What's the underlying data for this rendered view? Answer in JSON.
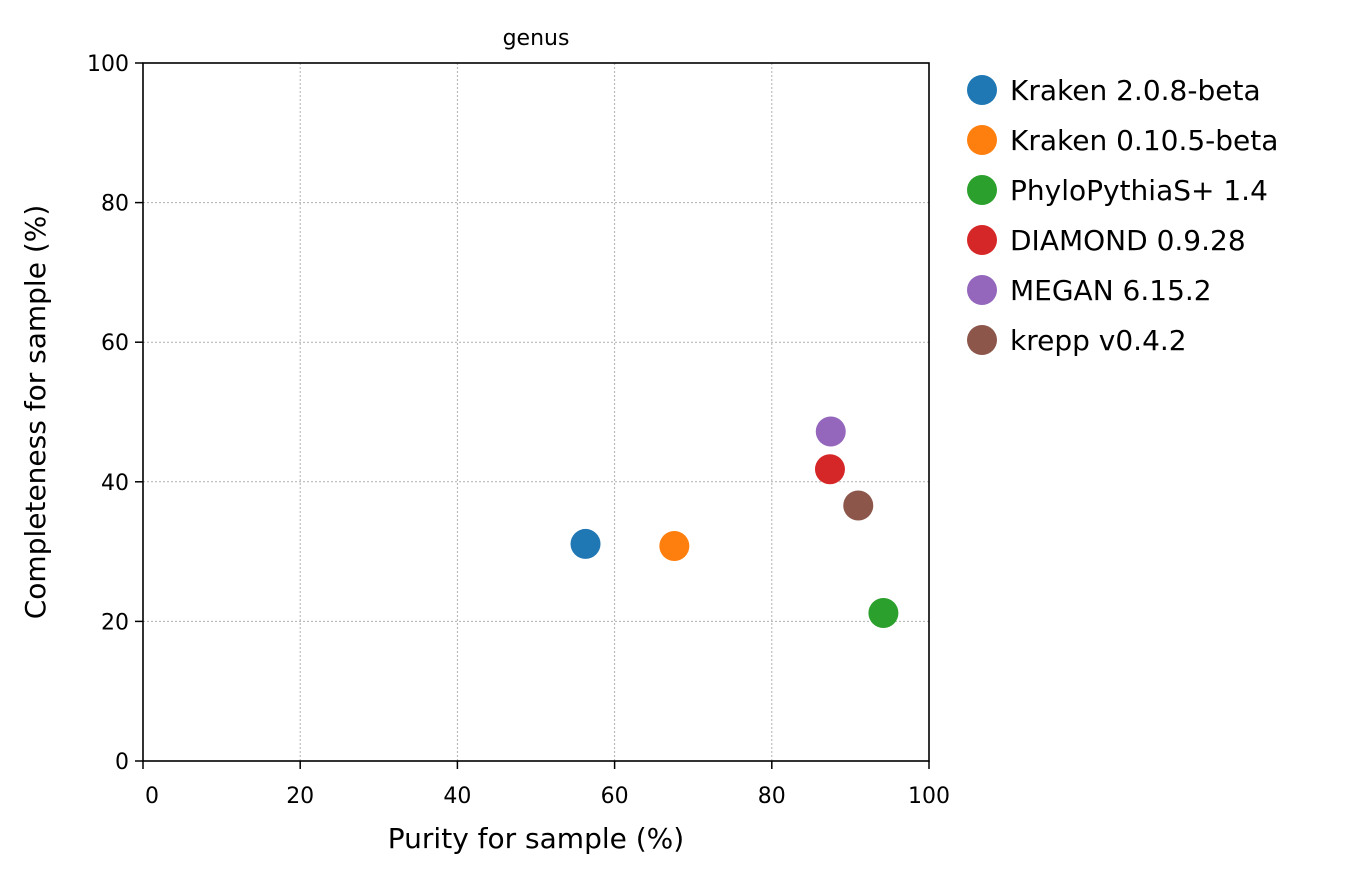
{
  "chart_data": {
    "type": "scatter",
    "title": "genus",
    "xlabel": "Purity for sample (%)",
    "ylabel": "Completeness for sample (%)",
    "xlim": [
      0,
      100
    ],
    "ylim": [
      0,
      100
    ],
    "xticks": [
      0,
      20,
      40,
      60,
      80,
      100
    ],
    "yticks": [
      0,
      20,
      40,
      60,
      80,
      100
    ],
    "grid": true,
    "legend_position": "outside-right",
    "series": [
      {
        "name": "Kraken 2.0.8-beta",
        "color": "#1f77b4",
        "x": 56.3,
        "y": 31.1
      },
      {
        "name": "Kraken 0.10.5-beta",
        "color": "#ff7f0e",
        "x": 67.6,
        "y": 30.8
      },
      {
        "name": "PhyloPythiaS+ 1.4",
        "color": "#2ca02c",
        "x": 94.2,
        "y": 21.2
      },
      {
        "name": "DIAMOND 0.9.28",
        "color": "#d62728",
        "x": 87.4,
        "y": 41.8
      },
      {
        "name": "MEGAN 6.15.2",
        "color": "#9467bd",
        "x": 87.5,
        "y": 47.2
      },
      {
        "name": "krepp v0.4.2",
        "color": "#8c564b",
        "x": 91.0,
        "y": 36.6
      }
    ]
  }
}
